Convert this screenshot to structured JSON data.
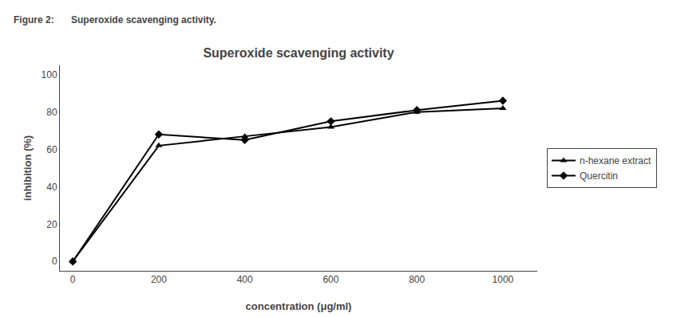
{
  "chart_data": {
    "type": "line",
    "title": "Superoxide scavenging activity",
    "xlabel": "concentration (μg/ml)",
    "ylabel": "inhibition (%)",
    "annotations": [
      "Figure 2:",
      "Superoxide scavenging activity."
    ],
    "x": [
      0,
      200,
      400,
      600,
      800,
      1000
    ],
    "series": [
      {
        "name": "n-hexane extract",
        "color": "#000000",
        "marker": "triangle-up",
        "values": [
          0,
          62,
          67,
          72,
          80,
          82
        ]
      },
      {
        "name": "Quercitin",
        "color": "#000000",
        "marker": "diamond",
        "values": [
          0,
          68,
          65,
          75,
          81,
          86
        ]
      }
    ],
    "xlim": [
      -30,
      1080
    ],
    "ylim": [
      -5,
      105
    ],
    "xticks": [
      0,
      200,
      400,
      600,
      800,
      1000
    ],
    "yticks": [
      0,
      20,
      40,
      60,
      80,
      100
    ],
    "grid": false,
    "legend": "right"
  }
}
